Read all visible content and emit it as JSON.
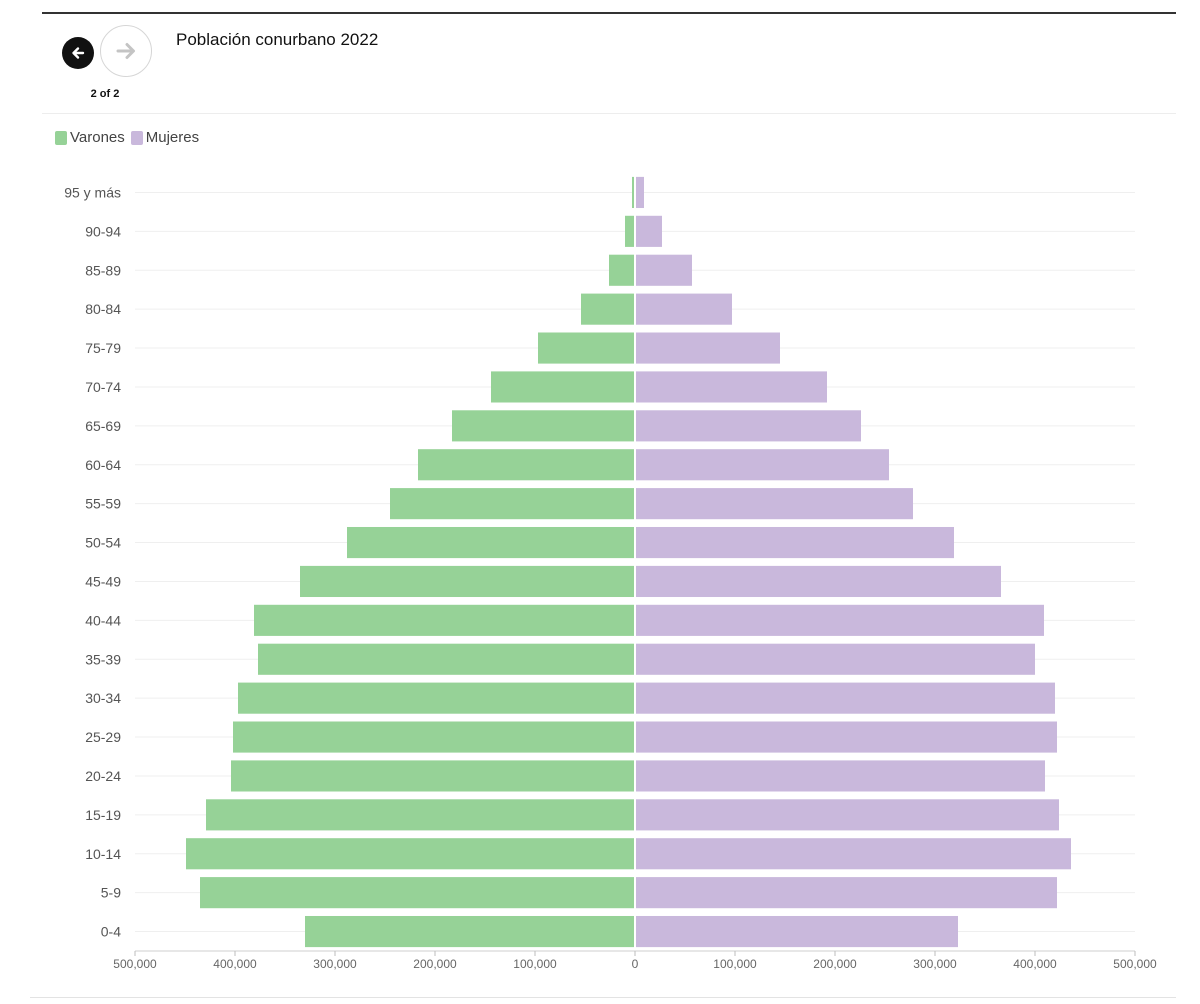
{
  "header": {
    "title": "Población conurbano 2022",
    "pager": "2 of 2",
    "prev_icon": "arrow-left-icon",
    "next_icon": "arrow-right-icon"
  },
  "legend": {
    "varones": "Varones",
    "mujeres": "Mujeres"
  },
  "colors": {
    "varones": "#96d297",
    "mujeres": "#c9b8dc"
  },
  "chart_data": {
    "type": "bar",
    "orientation": "horizontal",
    "title": "Población conurbano 2022",
    "categories": [
      "95 y más",
      "90-94",
      "85-89",
      "80-84",
      "75-79",
      "70-74",
      "65-69",
      "60-64",
      "55-59",
      "50-54",
      "45-49",
      "40-44",
      "35-39",
      "30-34",
      "25-29",
      "20-24",
      "15-19",
      "10-14",
      "5-9",
      "0-4"
    ],
    "series": [
      {
        "name": "Varones",
        "values": [
          3000,
          10000,
          26000,
          54000,
          97000,
          144000,
          183000,
          217000,
          245000,
          288000,
          335000,
          381000,
          377000,
          397000,
          402000,
          404000,
          429000,
          449000,
          435000,
          330000
        ]
      },
      {
        "name": "Mujeres",
        "values": [
          9000,
          27000,
          57000,
          97000,
          145000,
          192000,
          226000,
          254000,
          278000,
          319000,
          366000,
          409000,
          400000,
          420000,
          422000,
          410000,
          424000,
          436000,
          422000,
          323000
        ]
      }
    ],
    "xlim": [
      -500000,
      500000
    ],
    "xticks": [
      -500000,
      -400000,
      -300000,
      -200000,
      -100000,
      0,
      100000,
      200000,
      300000,
      400000,
      500000
    ],
    "xtick_labels": [
      "500,000",
      "400,000",
      "300,000",
      "200,000",
      "100,000",
      "0",
      "100,000",
      "200,000",
      "300,000",
      "400,000",
      "500,000"
    ],
    "grid": true,
    "legend_position": "top-left"
  }
}
